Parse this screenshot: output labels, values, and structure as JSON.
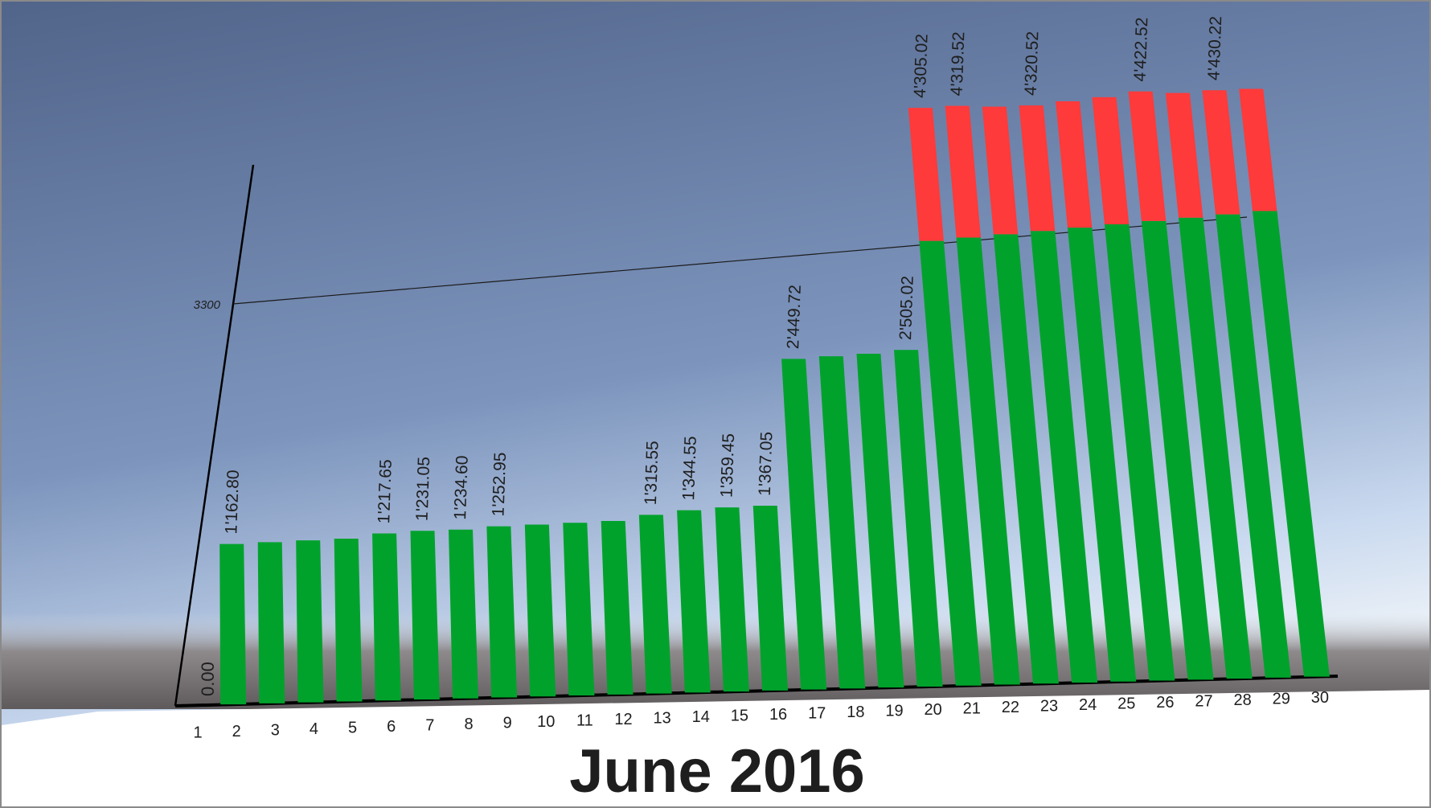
{
  "chart_data": {
    "type": "bar",
    "title": "June 2016",
    "threshold": 3300,
    "threshold_label": "3300",
    "zero_label": "0.00",
    "ylim": [
      0,
      4430.22
    ],
    "categories": [
      "1",
      "2",
      "3",
      "4",
      "5",
      "6",
      "7",
      "8",
      "9",
      "10",
      "11",
      "12",
      "13",
      "14",
      "15",
      "16",
      "17",
      "18",
      "19",
      "20",
      "21",
      "22",
      "23",
      "24",
      "25",
      "26",
      "27",
      "28",
      "29",
      "30"
    ],
    "values": [
      null,
      1162.8,
      1170.0,
      1178.0,
      1185.0,
      1217.65,
      1231.05,
      1234.6,
      1252.95,
      1260.0,
      1268.0,
      1276.0,
      1315.55,
      1344.55,
      1359.45,
      1367.05,
      2449.72,
      2465.0,
      2480.0,
      2505.02,
      4305.02,
      4319.52,
      4312.0,
      4320.52,
      4350.0,
      4380.0,
      4422.52,
      4410.0,
      4430.22,
      4440.0
    ],
    "value_labels": {
      "2": "1'162.80",
      "6": "1'217.65",
      "7": "1'231.05",
      "8": "1'234.60",
      "9": "1'252.95",
      "13": "1'315.55",
      "14": "1'344.55",
      "15": "1'359.45",
      "16": "1'367.05",
      "17": "2'449.72",
      "20": "2'505.02",
      "21": "4'305.02",
      "22": "4'319.52",
      "24": "4'320.52",
      "27": "4'422.52",
      "29": "4'430.22"
    },
    "colors": {
      "below_threshold": "#00a22c",
      "above_threshold": "#ff3a3a",
      "axis": "#000000",
      "sky_top": "#5a6f94",
      "sky_bottom": "#b4c8e6",
      "floor": "#ffffff",
      "horizon": "#6e6a6c"
    }
  }
}
